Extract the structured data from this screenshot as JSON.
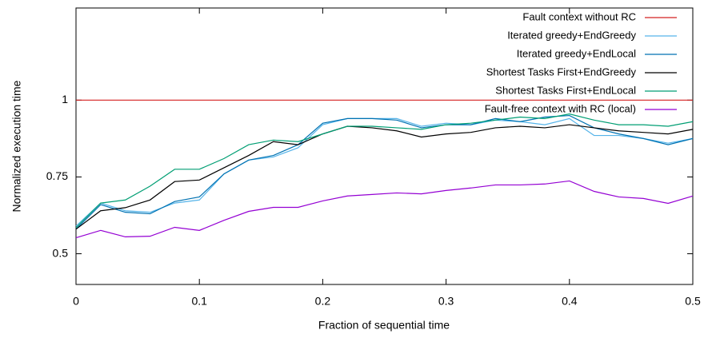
{
  "chart_data": {
    "type": "line",
    "x_label": "Fraction of sequential time",
    "y_label": "Normalized execution time",
    "x": [
      0,
      0.02,
      0.04,
      0.06,
      0.08,
      0.1,
      0.12,
      0.14,
      0.16,
      0.18,
      0.2,
      0.22,
      0.24,
      0.26,
      0.28,
      0.3,
      0.32,
      0.34,
      0.36,
      0.38,
      0.4,
      0.42,
      0.44,
      0.46,
      0.48,
      0.5
    ],
    "xlim": [
      0,
      0.5
    ],
    "xticks": [
      0,
      0.1,
      0.2,
      0.3,
      0.4,
      0.5
    ],
    "ylim": [
      0.4,
      1.3
    ],
    "yticks": [
      0.5,
      0.75,
      1
    ],
    "legend": "top-right",
    "series": [
      {
        "name": "Fault context without RC",
        "color": "#d42020",
        "values": [
          1,
          1,
          1,
          1,
          1,
          1,
          1,
          1,
          1,
          1,
          1,
          1,
          1,
          1,
          1,
          1,
          1,
          1,
          1,
          1,
          1,
          1,
          1,
          1,
          1,
          1
        ]
      },
      {
        "name": "Iterated greedy+EndGreedy",
        "color": "#56b4e9",
        "values": [
          0.59,
          0.665,
          0.64,
          0.635,
          0.665,
          0.675,
          0.76,
          0.805,
          0.815,
          0.845,
          0.92,
          0.94,
          0.94,
          0.94,
          0.915,
          0.925,
          0.92,
          0.935,
          0.93,
          0.92,
          0.94,
          0.885,
          0.885,
          0.875,
          0.86,
          0.875
        ]
      },
      {
        "name": "Iterated greedy+EndLocal",
        "color": "#0072b2",
        "values": [
          0.58,
          0.66,
          0.635,
          0.63,
          0.67,
          0.685,
          0.76,
          0.805,
          0.82,
          0.855,
          0.925,
          0.94,
          0.94,
          0.935,
          0.91,
          0.92,
          0.92,
          0.94,
          0.93,
          0.945,
          0.95,
          0.91,
          0.89,
          0.875,
          0.855,
          0.875
        ]
      },
      {
        "name": "Shortest Tasks First+EndGreedy",
        "color": "#000000",
        "values": [
          0.58,
          0.64,
          0.65,
          0.675,
          0.735,
          0.74,
          0.78,
          0.82,
          0.865,
          0.855,
          0.89,
          0.915,
          0.91,
          0.9,
          0.88,
          0.89,
          0.895,
          0.91,
          0.915,
          0.91,
          0.92,
          0.91,
          0.9,
          0.895,
          0.89,
          0.905
        ]
      },
      {
        "name": "Shortest Tasks First+EndLocal",
        "color": "#009e73",
        "values": [
          0.585,
          0.665,
          0.675,
          0.72,
          0.775,
          0.775,
          0.81,
          0.855,
          0.87,
          0.865,
          0.89,
          0.915,
          0.915,
          0.91,
          0.905,
          0.92,
          0.925,
          0.935,
          0.945,
          0.94,
          0.955,
          0.935,
          0.92,
          0.92,
          0.915,
          0.93
        ]
      },
      {
        "name": "Fault-free context with RC (local)",
        "color": "#9400d3",
        "values": [
          0.552,
          0.576,
          0.555,
          0.557,
          0.586,
          0.576,
          0.609,
          0.638,
          0.651,
          0.651,
          0.672,
          0.688,
          0.693,
          0.698,
          0.695,
          0.706,
          0.714,
          0.724,
          0.724,
          0.727,
          0.737,
          0.703,
          0.685,
          0.68,
          0.664,
          0.688
        ]
      }
    ]
  }
}
